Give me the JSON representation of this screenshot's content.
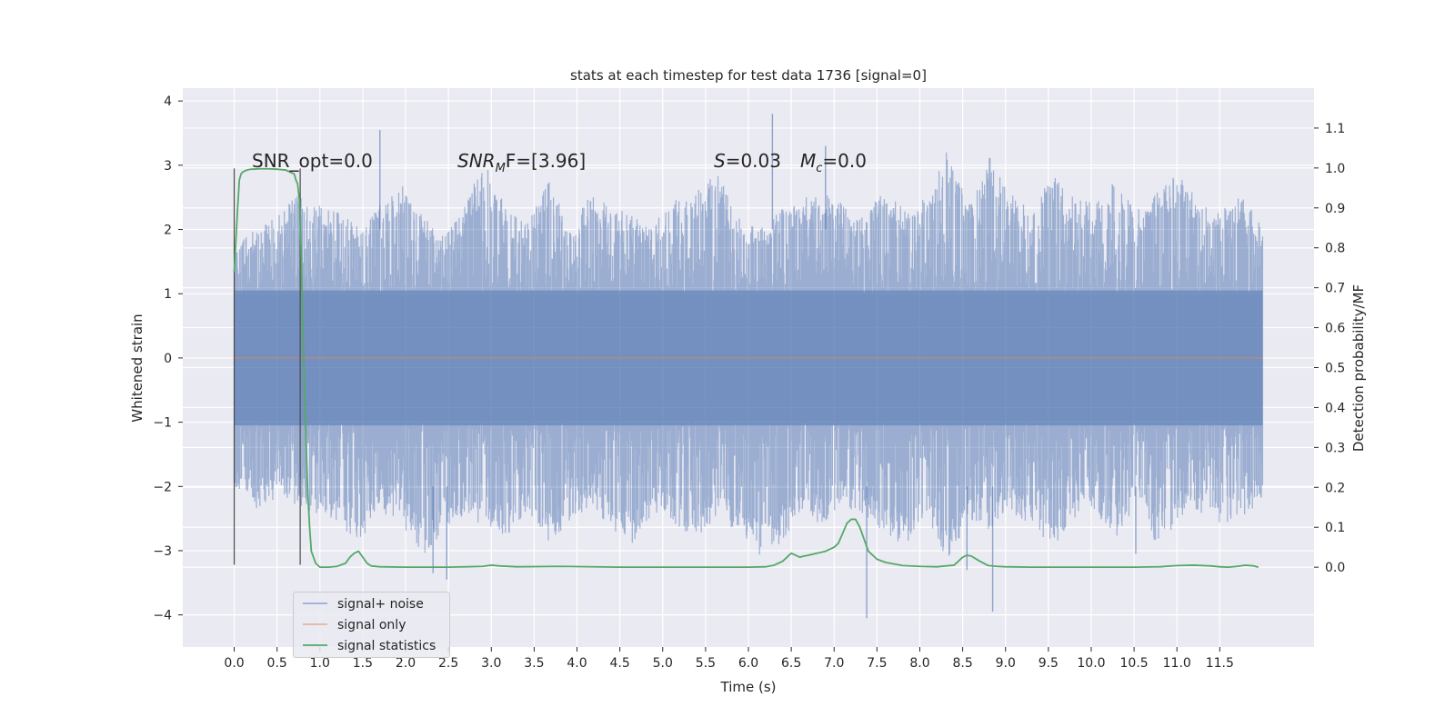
{
  "chart_data": {
    "type": "line",
    "title": "stats at each timestep for test data 1736 [signal=0]",
    "xlabel": "Time (s)",
    "ylabel_left": "Whitened strain",
    "ylabel_right": "Detection probability/MF",
    "xlim": [
      -0.6,
      12.6
    ],
    "ylim_left": [
      -4.5,
      4.2
    ],
    "ylim_right": [
      -0.2,
      1.2
    ],
    "x_ticks": [
      "0.0",
      "0.5",
      "1.0",
      "1.5",
      "2.0",
      "2.5",
      "3.0",
      "3.5",
      "4.0",
      "4.5",
      "5.0",
      "5.5",
      "6.0",
      "6.5",
      "7.0",
      "7.5",
      "8.0",
      "8.5",
      "9.0",
      "9.5",
      "10.0",
      "10.5",
      "11.0",
      "11.5"
    ],
    "y_ticks_left": [
      "−4",
      "−3",
      "−2",
      "−1",
      "0",
      "1",
      "2",
      "3",
      "4"
    ],
    "y_ticks_right": [
      "0.0",
      "0.1",
      "0.2",
      "0.3",
      "0.4",
      "0.5",
      "0.6",
      "0.7",
      "0.8",
      "0.9",
      "1.0",
      "1.1"
    ],
    "grid": true,
    "legend_location": "lower-left",
    "vertical_markers": [
      0.0,
      0.77
    ],
    "annotations": {
      "snr_opt": "SNR_opt=0.0",
      "snr_mf_base": "SNR",
      "snr_mf_sub": "M",
      "snr_mf_rest": "F=[3.96]",
      "s_var": "S",
      "s_val": "=0.03",
      "mc_var": "M",
      "mc_sub": "c",
      "mc_val": "=0.0"
    },
    "series": [
      {
        "name": "signal+ noise",
        "axis": "left",
        "color": "#4c72b0",
        "x_range": [
          0.0,
          12.0
        ],
        "envelope_upper": [
          1.8,
          2.0,
          2.2,
          2.6,
          2.4,
          2.3,
          2.0,
          2.4,
          2.7,
          2.2,
          1.9,
          2.5,
          3.0,
          2.3,
          2.2,
          2.8,
          2.0,
          2.6,
          2.4,
          2.2,
          2.1,
          2.5,
          2.6,
          2.9,
          2.2,
          2.0,
          2.3,
          2.5,
          2.6,
          2.4,
          2.2,
          2.7,
          2.3,
          2.5,
          3.3,
          2.4,
          3.2,
          2.6,
          2.3,
          2.9,
          2.5,
          2.4,
          2.8,
          2.3,
          2.6,
          2.9,
          2.4,
          2.3,
          2.6,
          2.0
        ],
        "envelope_lower": [
          -2.0,
          -2.4,
          -2.2,
          -2.3,
          -2.5,
          -2.6,
          -2.9,
          -2.4,
          -2.6,
          -3.1,
          -2.7,
          -2.5,
          -2.6,
          -2.8,
          -2.4,
          -2.9,
          -2.6,
          -2.3,
          -2.7,
          -2.9,
          -2.4,
          -2.6,
          -2.8,
          -2.5,
          -2.7,
          -3.1,
          -2.9,
          -2.4,
          -2.6,
          -2.3,
          -2.5,
          -2.8,
          -2.9,
          -2.6,
          -3.2,
          -2.5,
          -2.7,
          -2.4,
          -2.6,
          -3.0,
          -2.5,
          -2.4,
          -2.8,
          -2.3,
          -3.0,
          -2.5,
          -2.4,
          -2.6,
          -2.5,
          -2.2
        ],
        "spikes": [
          [
            1.7,
            3.55
          ],
          [
            6.28,
            3.8
          ],
          [
            6.9,
            3.3
          ],
          [
            2.32,
            -3.35
          ],
          [
            2.48,
            -3.45
          ],
          [
            7.38,
            -4.05
          ],
          [
            8.85,
            -3.95
          ],
          [
            8.55,
            -3.3
          ],
          [
            10.52,
            -3.05
          ]
        ]
      },
      {
        "name": "signal only",
        "axis": "left",
        "color": "#dd8452",
        "x": [
          0.0,
          12.0
        ],
        "y": [
          0.0,
          0.0
        ]
      },
      {
        "name": "signal statistics",
        "axis": "right",
        "color": "#55a868",
        "x": [
          0.0,
          0.02,
          0.04,
          0.06,
          0.08,
          0.1,
          0.15,
          0.2,
          0.3,
          0.4,
          0.5,
          0.6,
          0.65,
          0.7,
          0.72,
          0.74,
          0.76,
          0.78,
          0.8,
          0.82,
          0.84,
          0.86,
          0.88,
          0.9,
          0.95,
          1.0,
          1.1,
          1.2,
          1.3,
          1.35,
          1.4,
          1.45,
          1.5,
          1.55,
          1.6,
          1.7,
          2.0,
          2.5,
          2.9,
          3.0,
          3.1,
          3.3,
          3.8,
          4.5,
          5.5,
          6.0,
          6.2,
          6.3,
          6.4,
          6.45,
          6.5,
          6.55,
          6.6,
          6.65,
          6.7,
          6.8,
          6.9,
          7.0,
          7.05,
          7.1,
          7.15,
          7.2,
          7.25,
          7.3,
          7.35,
          7.4,
          7.5,
          7.6,
          7.7,
          7.8,
          8.0,
          8.2,
          8.4,
          8.5,
          8.55,
          8.6,
          8.7,
          8.8,
          8.9,
          9.0,
          9.3,
          10.0,
          10.5,
          10.8,
          11.0,
          11.2,
          11.4,
          11.5,
          11.6,
          11.7,
          11.8,
          11.9,
          11.95
        ],
        "y": [
          0.74,
          0.82,
          0.9,
          0.97,
          0.985,
          0.99,
          0.995,
          0.997,
          0.998,
          0.998,
          0.997,
          0.995,
          0.99,
          0.985,
          0.97,
          0.96,
          0.92,
          0.8,
          0.6,
          0.45,
          0.3,
          0.18,
          0.1,
          0.04,
          0.01,
          0.0,
          0.0,
          0.002,
          0.01,
          0.025,
          0.035,
          0.04,
          0.025,
          0.01,
          0.003,
          0.001,
          0.0,
          0.0,
          0.002,
          0.005,
          0.003,
          0.001,
          0.002,
          0.0,
          0.0,
          0.0,
          0.001,
          0.005,
          0.015,
          0.025,
          0.035,
          0.03,
          0.025,
          0.028,
          0.03,
          0.035,
          0.04,
          0.05,
          0.06,
          0.085,
          0.11,
          0.12,
          0.12,
          0.1,
          0.07,
          0.04,
          0.02,
          0.012,
          0.008,
          0.004,
          0.002,
          0.001,
          0.005,
          0.025,
          0.03,
          0.028,
          0.015,
          0.004,
          0.002,
          0.001,
          0.0,
          0.0,
          0.0,
          0.001,
          0.004,
          0.005,
          0.003,
          0.001,
          0.0,
          0.002,
          0.005,
          0.003,
          0.0
        ]
      }
    ]
  }
}
